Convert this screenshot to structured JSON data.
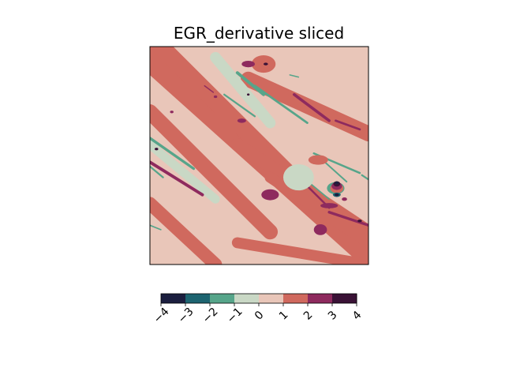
{
  "chart_data": {
    "type": "heatmap",
    "title": "EGR_derivative sliced",
    "xlabel": "",
    "ylabel": "",
    "axes_ticks": false,
    "colorbar": {
      "orientation": "horizontal",
      "position": "bottom",
      "levels": [
        -4,
        -3,
        -2,
        -1,
        0,
        1,
        2,
        3,
        4
      ],
      "tick_labels": [
        "−4",
        "−3",
        "−2",
        "−1",
        "0",
        "1",
        "2",
        "3",
        "4"
      ],
      "tick_rotation_deg": 45,
      "colors": [
        "#1b1e3f",
        "#1d6470",
        "#56a58a",
        "#c9d8c5",
        "#e9c6b9",
        "#d0695e",
        "#8e2a5e",
        "#3a1236"
      ]
    },
    "field": {
      "background_level": 0,
      "features": [
        {
          "type": "band",
          "level": 1,
          "x1": 0.0,
          "y1": 0.95,
          "x2": 1.0,
          "y2": 0.05,
          "width": 0.12
        },
        {
          "type": "band",
          "level": 1,
          "x1": 0.0,
          "y1": 0.7,
          "x2": 0.55,
          "y2": 0.15,
          "width": 0.07
        },
        {
          "type": "band",
          "level": 1,
          "x1": 0.05,
          "y1": 1.0,
          "x2": 0.7,
          "y2": 0.35,
          "width": 0.08
        },
        {
          "type": "band",
          "level": 1,
          "x1": 0.0,
          "y1": 0.28,
          "x2": 0.3,
          "y2": 0.0,
          "width": 0.06
        },
        {
          "type": "band",
          "level": 1,
          "x1": 0.4,
          "y1": 0.55,
          "x2": 1.0,
          "y2": 0.15,
          "width": 0.06
        },
        {
          "type": "band",
          "level": 1,
          "x1": 0.4,
          "y1": 0.1,
          "x2": 1.0,
          "y2": 0.0,
          "width": 0.05
        },
        {
          "type": "band",
          "level": 1,
          "x1": 0.45,
          "y1": 0.85,
          "x2": 1.0,
          "y2": 0.6,
          "width": 0.07
        },
        {
          "type": "band",
          "level": 1,
          "x1": 0.55,
          "y1": 0.4,
          "x2": 1.0,
          "y2": 0.1,
          "width": 0.05
        },
        {
          "type": "band",
          "level": -1,
          "x1": 0.0,
          "y1": 0.55,
          "x2": 0.3,
          "y2": 0.3,
          "width": 0.04
        },
        {
          "type": "band",
          "level": -1,
          "x1": 0.3,
          "y1": 0.95,
          "x2": 0.55,
          "y2": 0.65,
          "width": 0.05
        },
        {
          "type": "band",
          "level": -2,
          "x1": 0.0,
          "y1": 0.58,
          "x2": 0.2,
          "y2": 0.44,
          "width": 0.012
        },
        {
          "type": "band",
          "level": -2,
          "x1": 0.0,
          "y1": 0.45,
          "x2": 0.06,
          "y2": 0.4,
          "width": 0.008
        },
        {
          "type": "band",
          "level": -2,
          "x1": 0.4,
          "y1": 0.88,
          "x2": 0.52,
          "y2": 0.78,
          "width": 0.014
        },
        {
          "type": "band",
          "level": -2,
          "x1": 0.34,
          "y1": 0.78,
          "x2": 0.48,
          "y2": 0.68,
          "width": 0.008
        },
        {
          "type": "band",
          "level": -2,
          "x1": 0.48,
          "y1": 0.82,
          "x2": 0.72,
          "y2": 0.65,
          "width": 0.01
        },
        {
          "type": "band",
          "level": -2,
          "x1": 0.75,
          "y1": 0.51,
          "x2": 0.96,
          "y2": 0.42,
          "width": 0.009
        },
        {
          "type": "band",
          "level": -2,
          "x1": 0.7,
          "y1": 0.4,
          "x2": 0.82,
          "y2": 0.3,
          "width": 0.006
        },
        {
          "type": "band",
          "level": -2,
          "x1": 0.8,
          "y1": 0.47,
          "x2": 0.9,
          "y2": 0.38,
          "width": 0.007
        },
        {
          "type": "band",
          "level": -2,
          "x1": 0.97,
          "y1": 0.41,
          "x2": 1.0,
          "y2": 0.39,
          "width": 0.008
        },
        {
          "type": "band",
          "level": -2,
          "x1": 0.0,
          "y1": 0.18,
          "x2": 0.05,
          "y2": 0.16,
          "width": 0.006
        },
        {
          "type": "band",
          "level": -2,
          "x1": 0.64,
          "y1": 0.87,
          "x2": 0.68,
          "y2": 0.86,
          "width": 0.004
        },
        {
          "type": "band",
          "level": 2,
          "x1": 0.0,
          "y1": 0.47,
          "x2": 0.24,
          "y2": 0.32,
          "width": 0.014
        },
        {
          "type": "band",
          "level": 2,
          "x1": 0.66,
          "y1": 0.78,
          "x2": 0.82,
          "y2": 0.66,
          "width": 0.013
        },
        {
          "type": "band",
          "level": 2,
          "x1": 0.85,
          "y1": 0.66,
          "x2": 0.96,
          "y2": 0.62,
          "width": 0.01
        },
        {
          "type": "band",
          "level": 2,
          "x1": 0.68,
          "y1": 0.4,
          "x2": 0.82,
          "y2": 0.26,
          "width": 0.009
        },
        {
          "type": "band",
          "level": 2,
          "x1": 0.82,
          "y1": 0.24,
          "x2": 1.0,
          "y2": 0.18,
          "width": 0.012
        },
        {
          "type": "band",
          "level": 2,
          "x1": 0.25,
          "y1": 0.82,
          "x2": 0.29,
          "y2": 0.79,
          "width": 0.005
        },
        {
          "type": "band",
          "level": 2,
          "x1": 0.55,
          "y1": 0.34,
          "x2": 0.58,
          "y2": 0.33,
          "width": 0.005
        },
        {
          "type": "blob",
          "level": 1,
          "cx": 0.52,
          "cy": 0.92,
          "rx": 0.055,
          "ry": 0.04
        },
        {
          "type": "blob",
          "level": 2,
          "cx": 0.45,
          "cy": 0.92,
          "rx": 0.03,
          "ry": 0.015
        },
        {
          "type": "blob",
          "level": 2,
          "cx": 0.77,
          "cy": 0.48,
          "rx": 0.025,
          "ry": 0.01
        },
        {
          "type": "blob",
          "level": 1,
          "cx": 0.77,
          "cy": 0.48,
          "rx": 0.045,
          "ry": 0.022
        },
        {
          "type": "blob",
          "level": 2,
          "cx": 0.55,
          "cy": 0.32,
          "rx": 0.04,
          "ry": 0.025
        },
        {
          "type": "blob",
          "level": 2,
          "cx": 0.78,
          "cy": 0.16,
          "rx": 0.03,
          "ry": 0.025
        },
        {
          "type": "blob",
          "level": 2,
          "cx": 0.82,
          "cy": 0.27,
          "rx": 0.04,
          "ry": 0.012
        },
        {
          "type": "blob",
          "level": 2,
          "cx": 0.42,
          "cy": 0.66,
          "rx": 0.02,
          "ry": 0.01
        },
        {
          "type": "blob",
          "level": 2,
          "cx": 0.1,
          "cy": 0.7,
          "rx": 0.008,
          "ry": 0.006
        },
        {
          "type": "blob",
          "level": 2,
          "cx": 0.3,
          "cy": 0.77,
          "rx": 0.008,
          "ry": 0.006
        },
        {
          "type": "blob",
          "level": -1,
          "cx": 0.68,
          "cy": 0.4,
          "rx": 0.07,
          "ry": 0.06
        },
        {
          "type": "blob",
          "level": -2,
          "cx": 0.85,
          "cy": 0.35,
          "rx": 0.04,
          "ry": 0.028
        },
        {
          "type": "blob",
          "level": 1,
          "cx": 0.855,
          "cy": 0.35,
          "rx": 0.03,
          "ry": 0.022
        },
        {
          "type": "blob",
          "level": 2,
          "cx": 0.855,
          "cy": 0.36,
          "rx": 0.024,
          "ry": 0.018
        },
        {
          "type": "blob",
          "level": 3,
          "cx": 0.855,
          "cy": 0.37,
          "rx": 0.016,
          "ry": 0.012
        },
        {
          "type": "blob",
          "level": -4,
          "cx": 0.855,
          "cy": 0.375,
          "rx": 0.009,
          "ry": 0.007
        },
        {
          "type": "blob",
          "level": -3,
          "cx": 0.855,
          "cy": 0.32,
          "rx": 0.018,
          "ry": 0.01
        },
        {
          "type": "blob",
          "level": -4,
          "cx": 0.855,
          "cy": 0.32,
          "rx": 0.01,
          "ry": 0.006
        },
        {
          "type": "blob",
          "level": 2,
          "cx": 0.89,
          "cy": 0.3,
          "rx": 0.012,
          "ry": 0.008
        },
        {
          "type": "blob",
          "level": 3,
          "cx": 0.53,
          "cy": 0.92,
          "rx": 0.01,
          "ry": 0.006
        },
        {
          "type": "blob",
          "level": 3,
          "cx": 0.45,
          "cy": 0.78,
          "rx": 0.006,
          "ry": 0.005
        },
        {
          "type": "blob",
          "level": 3,
          "cx": 0.03,
          "cy": 0.53,
          "rx": 0.008,
          "ry": 0.006
        },
        {
          "type": "blob",
          "level": 3,
          "cx": 0.96,
          "cy": 0.2,
          "rx": 0.01,
          "ry": 0.006
        }
      ]
    }
  }
}
